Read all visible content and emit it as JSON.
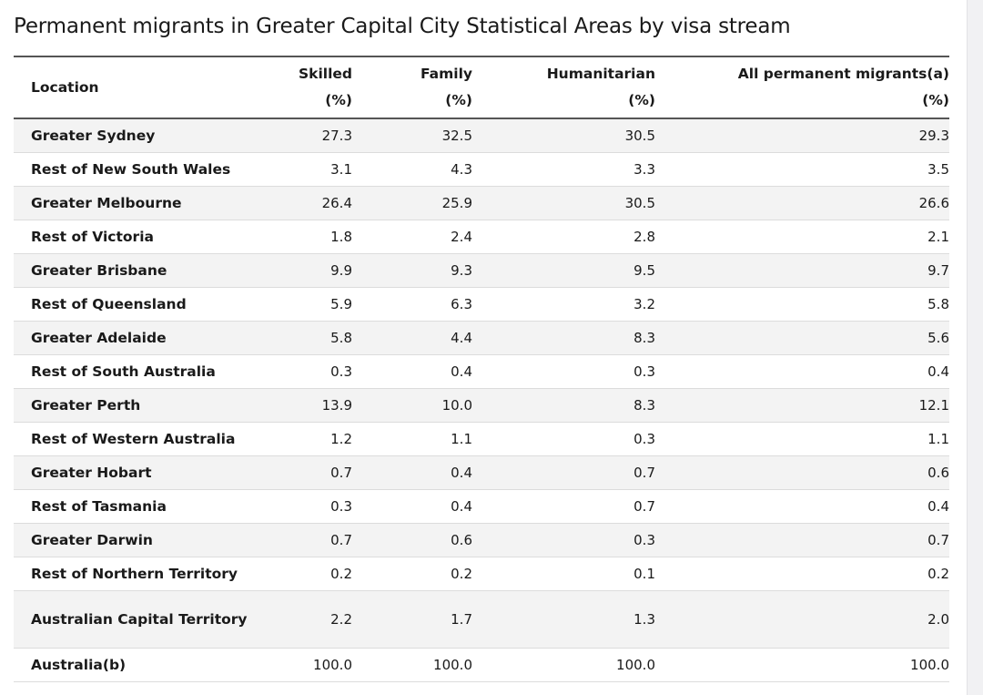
{
  "title": "Permanent migrants in Greater Capital City Statistical Areas by visa stream",
  "columns": {
    "location": "Location",
    "skilled_line1": "Skilled",
    "skilled_line2": "(%)",
    "family_line1": "Family",
    "family_line2": "(%)",
    "humanitarian_line1": "Humanitarian",
    "humanitarian_line2": "(%)",
    "all_line1": "All permanent migrants(a)",
    "all_line2": "(%)"
  },
  "rows": [
    {
      "location": "Greater Sydney",
      "skilled": "27.3",
      "family": "32.5",
      "humanitarian": "30.5",
      "all": "29.3"
    },
    {
      "location": "Rest of New South Wales",
      "skilled": "3.1",
      "family": "4.3",
      "humanitarian": "3.3",
      "all": "3.5"
    },
    {
      "location": "Greater Melbourne",
      "skilled": "26.4",
      "family": "25.9",
      "humanitarian": "30.5",
      "all": "26.6"
    },
    {
      "location": "Rest of Victoria",
      "skilled": "1.8",
      "family": "2.4",
      "humanitarian": "2.8",
      "all": "2.1"
    },
    {
      "location": "Greater Brisbane",
      "skilled": "9.9",
      "family": "9.3",
      "humanitarian": "9.5",
      "all": "9.7"
    },
    {
      "location": "Rest of Queensland",
      "skilled": "5.9",
      "family": "6.3",
      "humanitarian": "3.2",
      "all": "5.8"
    },
    {
      "location": "Greater Adelaide",
      "skilled": "5.8",
      "family": "4.4",
      "humanitarian": "8.3",
      "all": "5.6"
    },
    {
      "location": "Rest of South Australia",
      "skilled": "0.3",
      "family": "0.4",
      "humanitarian": "0.3",
      "all": "0.4"
    },
    {
      "location": "Greater Perth",
      "skilled": "13.9",
      "family": "10.0",
      "humanitarian": "8.3",
      "all": "12.1"
    },
    {
      "location": "Rest of Western Australia",
      "skilled": "1.2",
      "family": "1.1",
      "humanitarian": "0.3",
      "all": "1.1"
    },
    {
      "location": "Greater Hobart",
      "skilled": "0.7",
      "family": "0.4",
      "humanitarian": "0.7",
      "all": "0.6"
    },
    {
      "location": "Rest of Tasmania",
      "skilled": "0.3",
      "family": "0.4",
      "humanitarian": "0.7",
      "all": "0.4"
    },
    {
      "location": "Greater Darwin",
      "skilled": "0.7",
      "family": "0.6",
      "humanitarian": "0.3",
      "all": "0.7"
    },
    {
      "location": "Rest of Northern Territory",
      "skilled": "0.2",
      "family": "0.2",
      "humanitarian": "0.1",
      "all": "0.2"
    },
    {
      "location": "Australian Capital Territory",
      "skilled": "2.2",
      "family": "1.7",
      "humanitarian": "1.3",
      "all": "2.0"
    },
    {
      "location": "Australia(b)",
      "skilled": "100.0",
      "family": "100.0",
      "humanitarian": "100.0",
      "all": "100.0"
    }
  ]
}
